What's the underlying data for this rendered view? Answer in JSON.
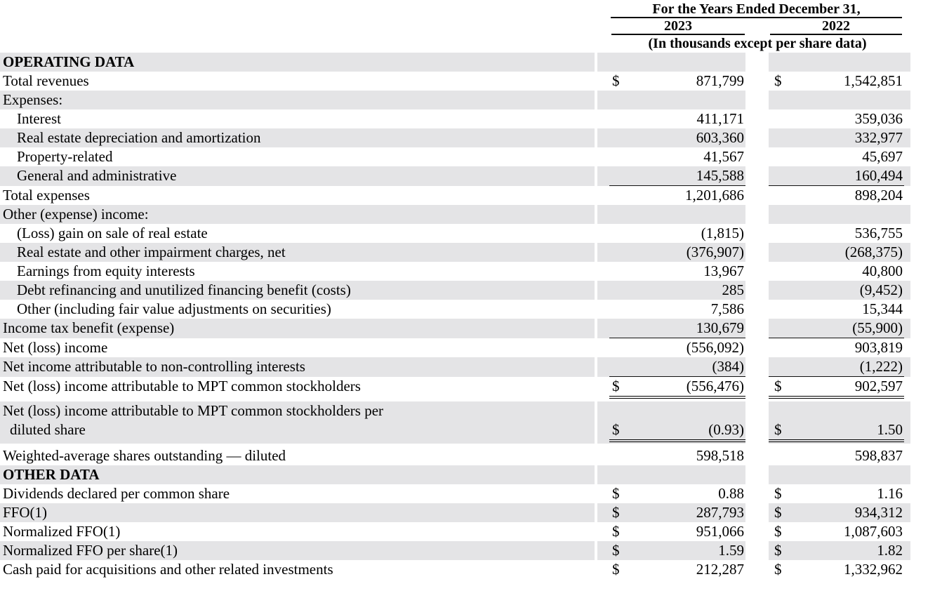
{
  "header": {
    "period_label": "For the Years Ended December 31,",
    "years": [
      "2023",
      "2022"
    ],
    "units_note": "(In thousands except per share data)"
  },
  "rows": [
    {
      "label": "OPERATING DATA"
    },
    {
      "label": "Total revenues",
      "d1": "$",
      "v1": "871,799",
      "d2": "$",
      "v2": "1,542,851"
    },
    {
      "label": "Expenses:"
    },
    {
      "label": "Interest",
      "v1": "411,171",
      "v2": "359,036"
    },
    {
      "label": "Real estate depreciation and amortization",
      "v1": "603,360",
      "v2": "332,977"
    },
    {
      "label": "Property-related",
      "v1": "41,567",
      "v2": "45,697"
    },
    {
      "label": "General and administrative",
      "v1": "145,588",
      "v2": "160,494"
    },
    {
      "label": "Total expenses",
      "v1": "1,201,686",
      "v2": "898,204"
    },
    {
      "label": "Other (expense) income:"
    },
    {
      "label": "(Loss) gain on sale of real estate",
      "v1": "(1,815)",
      "v2": "536,755"
    },
    {
      "label": "Real estate and other impairment charges, net",
      "v1": "(376,907)",
      "v2": "(268,375)"
    },
    {
      "label": "Earnings from equity interests",
      "v1": "13,967",
      "v2": "40,800"
    },
    {
      "label": "Debt refinancing and unutilized financing benefit (costs)",
      "v1": "285",
      "v2": "(9,452)"
    },
    {
      "label": "Other (including fair value adjustments on securities)",
      "v1": "7,586",
      "v2": "15,344"
    },
    {
      "label": "Income tax benefit (expense)",
      "v1": "130,679",
      "v2": "(55,900)"
    },
    {
      "label": "Net (loss) income",
      "v1": "(556,092)",
      "v2": "903,819"
    },
    {
      "label": "Net income attributable to non-controlling interests",
      "v1": "(384)",
      "v2": "(1,222)"
    },
    {
      "label": "Net (loss) income attributable to MPT common stockholders",
      "d1": "$",
      "v1": "(556,476)",
      "d2": "$",
      "v2": "902,597"
    },
    {
      "label": "Net (loss) income attributable to MPT common stockholders per",
      "label2": "diluted share",
      "d1": "$",
      "v1": "(0.93)",
      "d2": "$",
      "v2": "1.50"
    },
    {
      "label": "Weighted-average shares outstanding — diluted",
      "v1": "598,518",
      "v2": "598,837"
    },
    {
      "label": "OTHER DATA"
    },
    {
      "label": "Dividends declared per common share",
      "d1": "$",
      "v1": "0.88",
      "d2": "$",
      "v2": "1.16"
    },
    {
      "label": "FFO(1)",
      "d1": "$",
      "v1": "287,793",
      "d2": "$",
      "v2": "934,312"
    },
    {
      "label": "Normalized FFO(1)",
      "d1": "$",
      "v1": "951,066",
      "d2": "$",
      "v2": "1,087,603"
    },
    {
      "label": "Normalized FFO per share(1)",
      "d1": "$",
      "v1": "1.59",
      "d2": "$",
      "v2": "1.82"
    },
    {
      "label": "Cash paid for acquisitions and other related investments",
      "d1": "$",
      "v1": "212,287",
      "d2": "$",
      "v2": "1,332,962"
    }
  ]
}
